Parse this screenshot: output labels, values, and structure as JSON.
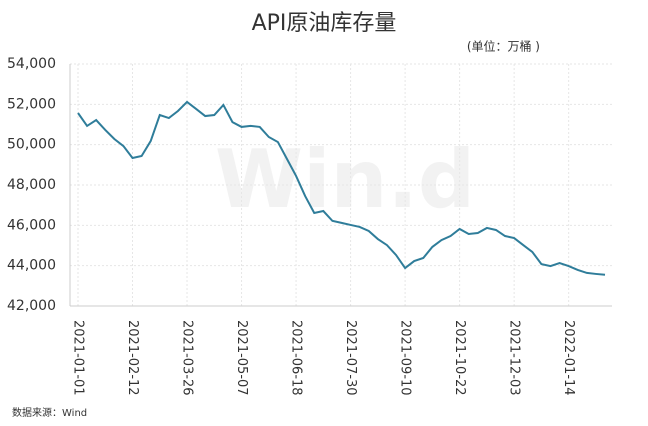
{
  "chart_data": {
    "type": "line",
    "title": "API原油库存量",
    "subtitle": "(单位：万桶 )",
    "source": "数据来源：Wind",
    "watermark": "Win.d",
    "categories": [
      "2021-01-01",
      null,
      null,
      null,
      null,
      null,
      "2021-02-12",
      null,
      null,
      null,
      null,
      null,
      "2021-03-26",
      null,
      null,
      null,
      null,
      null,
      "2021-05-07",
      null,
      null,
      null,
      null,
      null,
      "2021-06-18",
      null,
      null,
      null,
      null,
      null,
      "2021-07-30",
      null,
      null,
      null,
      null,
      null,
      "2021-09-10",
      null,
      null,
      null,
      null,
      null,
      "2021-10-22",
      null,
      null,
      null,
      null,
      null,
      "2021-12-03",
      null,
      null,
      null,
      null,
      null,
      "2022-01-14",
      null,
      null,
      null,
      null
    ],
    "series": [
      {
        "name": "API原油库存量",
        "color": "#2f7d9a",
        "values": [
          51570,
          50930,
          51220,
          50730,
          50280,
          49930,
          49340,
          49440,
          50180,
          51470,
          51320,
          51670,
          52120,
          51770,
          51420,
          51470,
          51970,
          51120,
          50880,
          50930,
          50880,
          50380,
          50130,
          49290,
          48450,
          47450,
          46610,
          46710,
          46220,
          46120,
          46020,
          45920,
          45720,
          45320,
          45020,
          44530,
          43880,
          44230,
          44380,
          44930,
          45270,
          45470,
          45820,
          45570,
          45620,
          45870,
          45770,
          45470,
          45370,
          45020,
          44680,
          44080,
          43980,
          44130,
          43980,
          43790,
          43640,
          43590,
          43550
        ]
      }
    ],
    "ylim": [
      42000,
      54000
    ],
    "yticks": [
      {
        "value": 42000,
        "label": "42,000"
      },
      {
        "value": 44000,
        "label": "44,000"
      },
      {
        "value": 46000,
        "label": "46,000"
      },
      {
        "value": 48000,
        "label": "48,000"
      },
      {
        "value": 50000,
        "label": "50,000"
      },
      {
        "value": 52000,
        "label": "52,000"
      },
      {
        "value": 54000,
        "label": "54,000"
      }
    ],
    "grid": true
  }
}
